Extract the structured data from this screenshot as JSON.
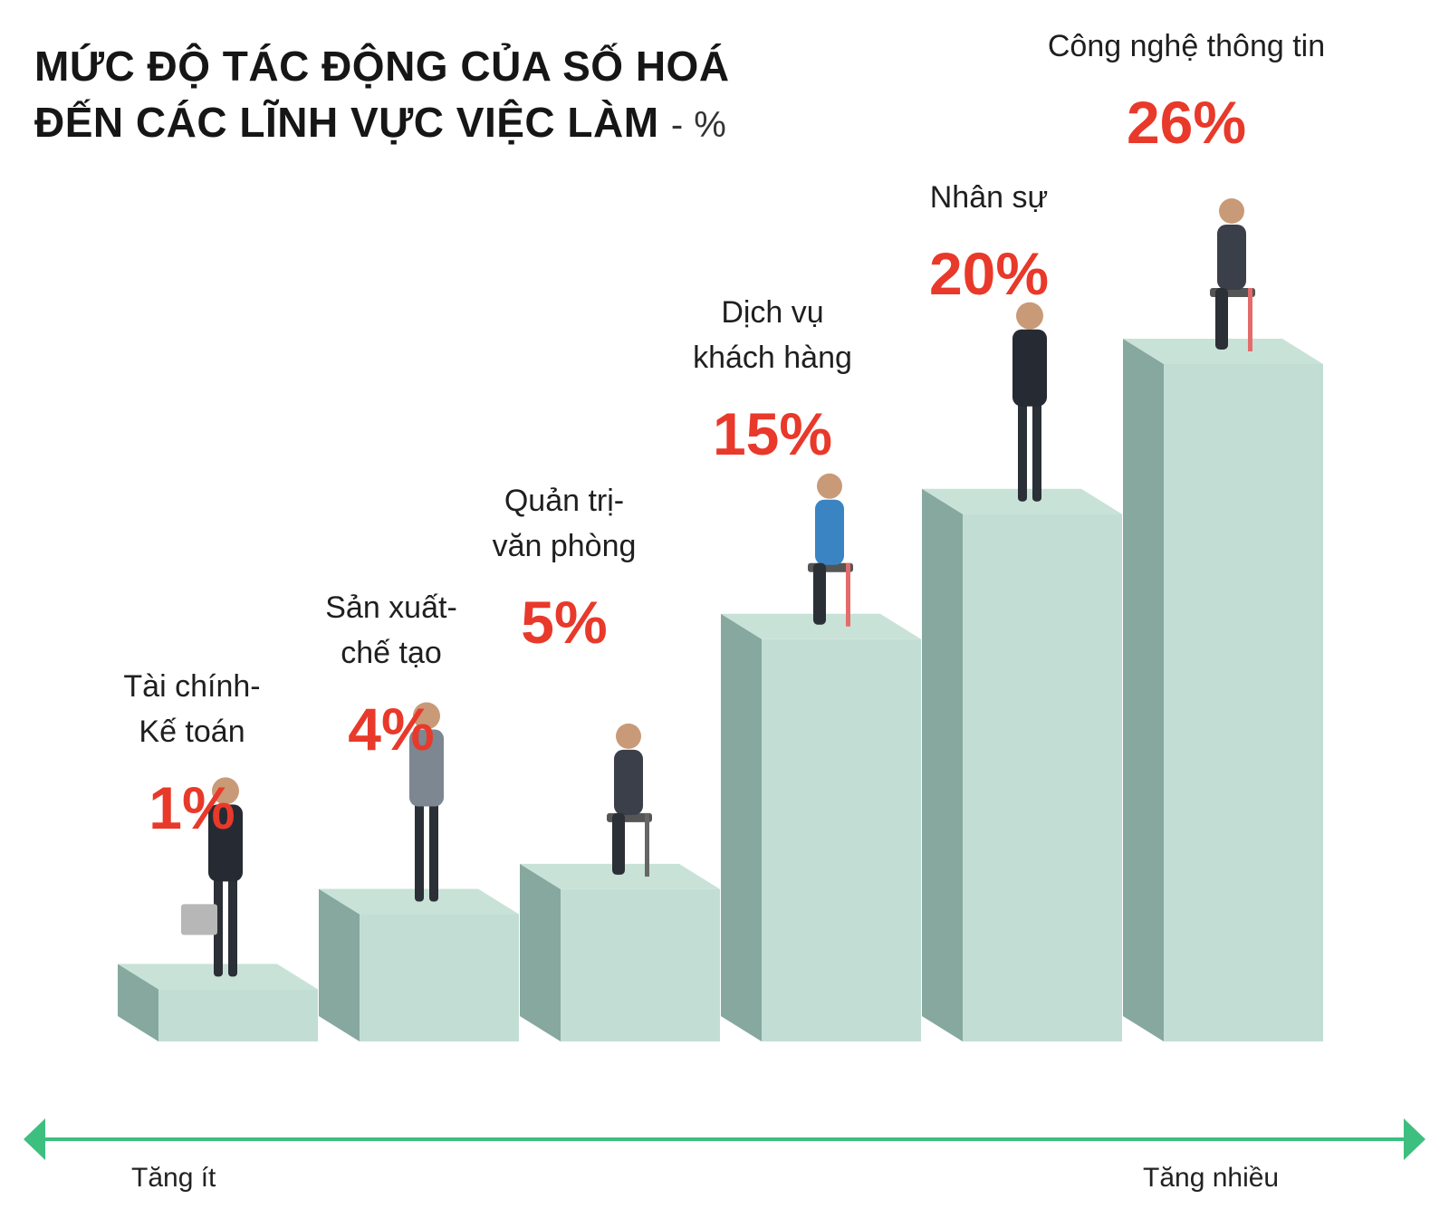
{
  "title": {
    "line1": "MỨC ĐỘ TÁC ĐỘNG CỦA SỐ HOÁ",
    "line2": "ĐẾN CÁC LĨNH VỰC VIỆC LÀM",
    "unit": "- %"
  },
  "axis": {
    "left_label": "Tăng ít",
    "right_label": "Tăng nhiều",
    "color": "#3dbf7f"
  },
  "colors": {
    "bar_top": "#c8e2d8",
    "bar_front": "#c2ded4",
    "bar_side": "#86a89f",
    "value": "#e8392a"
  },
  "chart_data": {
    "type": "bar",
    "categories": [
      [
        "Tài chính-",
        "Kế toán"
      ],
      [
        "Sản xuất-",
        "chế tạo"
      ],
      [
        "Quản trị-",
        "văn phòng"
      ],
      [
        "Dịch vụ",
        "khách hàng"
      ],
      [
        "Nhân sự"
      ],
      [
        "Công nghệ thông tin"
      ]
    ],
    "values": [
      1,
      4,
      5,
      15,
      20,
      26
    ],
    "value_labels": [
      "1%",
      "4%",
      "5%",
      "15%",
      "20%",
      "26%"
    ],
    "ylim": [
      0,
      26
    ]
  }
}
